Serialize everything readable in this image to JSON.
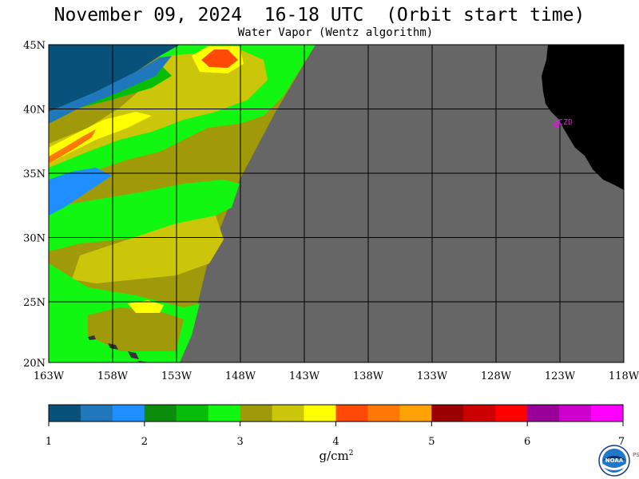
{
  "header": {
    "title": "November 09, 2024  16-18 UTC  (Orbit start time)",
    "subtitle": "Water Vapor (Wentz algorithm)"
  },
  "map": {
    "lat_labels": [
      "45N",
      "40N",
      "35N",
      "30N",
      "25N",
      "20N"
    ],
    "lon_labels": [
      "163W",
      "158W",
      "153W",
      "148W",
      "143W",
      "138W",
      "133W",
      "128W",
      "123W",
      "118W"
    ],
    "station_label": "CZD",
    "colors": {
      "no_data": "#666666",
      "land": "#000000",
      "station": "#ff00ff",
      "grid": "#000000"
    }
  },
  "colorbar": {
    "tick_labels": [
      "1",
      "2",
      "3",
      "4",
      "5",
      "6",
      "7"
    ],
    "unit": "g/cm",
    "unit_sup": "2",
    "colors": [
      "#08517a",
      "#1f78bc",
      "#1f8fff",
      "#0b8c0b",
      "#07bd07",
      "#12f712",
      "#a09a0a",
      "#ccc60a",
      "#ffff00",
      "#ff4a05",
      "#ff7805",
      "#ffa205",
      "#990000",
      "#cc0000",
      "#ff0000",
      "#990099",
      "#cc00cc",
      "#ff00ff"
    ]
  },
  "logo": {
    "text": "NOAA",
    "side_text": "PSL"
  }
}
